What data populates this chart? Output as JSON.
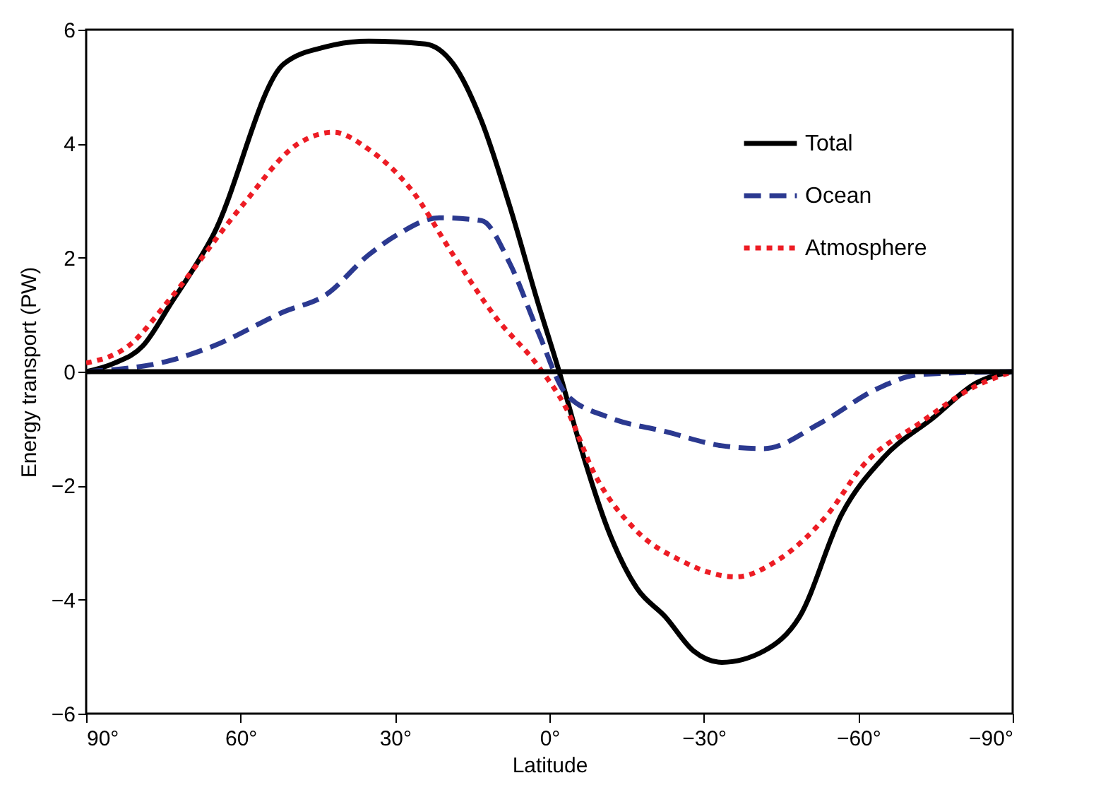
{
  "chart_data": {
    "type": "line",
    "xlabel": "Latitude",
    "ylabel": "Energy transport (PW)",
    "xlim": [
      90,
      -90
    ],
    "ylim": [
      -6,
      6
    ],
    "xticks": [
      {
        "value": 90,
        "label": "90°"
      },
      {
        "value": 60,
        "label": "60°"
      },
      {
        "value": 30,
        "label": "30°"
      },
      {
        "value": 0,
        "label": "0°"
      },
      {
        "value": -30,
        "label": "−30°"
      },
      {
        "value": -60,
        "label": "−60°"
      },
      {
        "value": -90,
        "label": "−90°"
      }
    ],
    "yticks": [
      {
        "value": -6,
        "label": "−6"
      },
      {
        "value": -4,
        "label": "−4"
      },
      {
        "value": -2,
        "label": "−2"
      },
      0,
      2,
      4,
      6
    ],
    "grid": false,
    "legend": "top right",
    "ref_lines": [
      {
        "axis": "y",
        "value": 0,
        "color": "#000000",
        "line_style": "solid"
      }
    ],
    "series": [
      {
        "name": "Total",
        "color": "#000000",
        "line_style": "solid",
        "x": [
          90,
          84.5,
          79,
          73.5,
          65.3,
          51.6,
          43.4,
          35.1,
          24.1,
          18.7,
          13.2,
          7.7,
          2.2,
          -1.9,
          -6,
          -11.5,
          -17,
          -22.5,
          -28,
          -33.5,
          -41.7,
          -48.6,
          -56.8,
          -65,
          -74.7,
          -82.9,
          -90
        ],
        "values": [
          0,
          0.15,
          0.45,
          1.2,
          2.4,
          5.4,
          5.7,
          5.8,
          5.75,
          5.4,
          4.4,
          2.9,
          1.2,
          0,
          -1.3,
          -2.8,
          -3.8,
          -4.3,
          -4.9,
          -5.1,
          -4.9,
          -4.3,
          -2.5,
          -1.5,
          -0.8,
          -0.2,
          0
        ]
      },
      {
        "name": "Ocean",
        "color": "#2b3990",
        "line_style": "dashed",
        "x": [
          90,
          73.5,
          65.3,
          51.6,
          43.4,
          35.1,
          29.6,
          21.4,
          13.2,
          7.7,
          2.2,
          -3.3,
          -11.5,
          -22.5,
          -33.5,
          -41.7,
          -52.7,
          -63.7,
          -72,
          -90
        ],
        "values": [
          0,
          0.2,
          0.45,
          1.05,
          1.35,
          2.05,
          2.4,
          2.7,
          2.65,
          1.9,
          0.7,
          -0.4,
          -0.8,
          -1.05,
          -1.3,
          -1.35,
          -0.9,
          -0.3,
          -0.05,
          0
        ]
      },
      {
        "name": "Atmosphere",
        "color": "#ed1c24",
        "line_style": "dotted",
        "x": [
          90,
          81.8,
          73.5,
          59.8,
          48.8,
          42,
          35.1,
          26.9,
          18.7,
          10.4,
          2.2,
          -3.3,
          -8.8,
          -17,
          -25.2,
          -36.2,
          -44.5,
          -54.1,
          -60.9,
          -72,
          -82.9,
          -90
        ],
        "values": [
          0.15,
          0.45,
          1.3,
          2.9,
          4.0,
          4.2,
          3.9,
          3.2,
          2.05,
          0.95,
          0.1,
          -0.65,
          -1.8,
          -2.8,
          -3.3,
          -3.6,
          -3.3,
          -2.5,
          -1.65,
          -0.9,
          -0.25,
          0
        ]
      }
    ]
  }
}
